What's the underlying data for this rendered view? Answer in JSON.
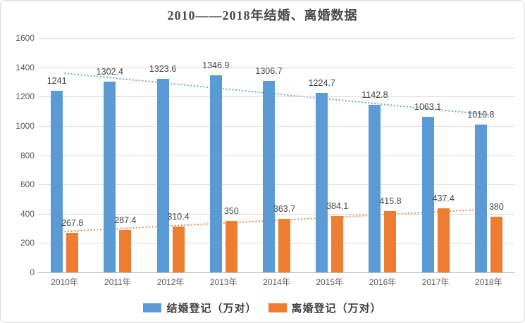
{
  "chart_data": {
    "type": "bar",
    "title": "2010——2018年结婚、离婚数据",
    "categories": [
      "2010年",
      "2011年",
      "2012年",
      "2013年",
      "2014年",
      "2015年",
      "2016年",
      "2017年",
      "2018年"
    ],
    "series": [
      {
        "id": "marriage",
        "name": "结婚登记（万对）",
        "color": "#5B9BD5",
        "values": [
          1241,
          1302.4,
          1323.6,
          1346.9,
          1306.7,
          1224.7,
          1142.8,
          1063.1,
          1010.8
        ],
        "trendline": true
      },
      {
        "id": "divorce",
        "name": "离婚登记（万对）",
        "color": "#ED7D31",
        "values": [
          267.8,
          287.4,
          310.4,
          350,
          363.7,
          384.1,
          415.8,
          437.4,
          380
        ],
        "trendline": true
      }
    ],
    "ylim": [
      0,
      1600
    ],
    "yticks": [
      0,
      200,
      400,
      600,
      800,
      1000,
      1200,
      1400,
      1600
    ],
    "grid": true,
    "value_labels": true,
    "legend_position": "bottom"
  },
  "style": {
    "grid_color": "#D9D9D9",
    "axis_color": "#BFBFBF",
    "tick_text_color": "#595959",
    "value_label_color": "#444444",
    "title_color": "#4A4A4A",
    "legend_text_color": "#404040",
    "border_color": "#D9D9D9",
    "background": "#FFFFFF",
    "trendline_dash": "2 2.6"
  }
}
